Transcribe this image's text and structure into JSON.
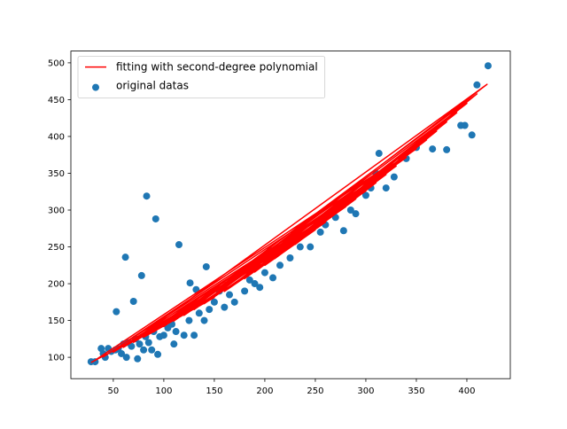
{
  "chart_data": {
    "type": "scatter",
    "legend": "upper left",
    "xlim": [
      8,
      443
    ],
    "ylim": [
      71,
      516
    ],
    "xticks": [
      50,
      100,
      150,
      200,
      250,
      300,
      350,
      400
    ],
    "yticks": [
      100,
      150,
      200,
      250,
      300,
      350,
      400,
      450,
      500
    ],
    "series": [
      {
        "name": "fitting with second-degree polynomial",
        "type": "line",
        "color": "#ff0000",
        "x": [
          28,
          150,
          80,
          300,
          120,
          420,
          60,
          250,
          200,
          410,
          100,
          350,
          40,
          320,
          180,
          390,
          140,
          280,
          90,
          370,
          230,
          310,
          50,
          260,
          160,
          400,
          110,
          340,
          70,
          290,
          210,
          380,
          130,
          330,
          190,
          360,
          30
        ],
        "values": [
          93.0,
          181.1,
          127.3,
          325.9,
          157.0,
          470.8,
          113.5,
          273.2,
          224.9,
          457.8,
          141.8,
          383.2,
          100.5,
          348.3,
          206.8,
          432.2,
          172.9,
          304.3,
          134.4,
          407.3,
          253.3,
          337.0,
          106.9,
          283.4,
          189.5,
          444.9,
          149.3,
          371.4,
          120.3,
          315.0,
          234.2,
          419.7,
          164.8,
          359.8,
          215.8,
          395.2,
          94.2
        ]
      },
      {
        "name": "original datas",
        "type": "scatter",
        "color": "#1f77b4",
        "x": [
          28,
          32,
          38,
          40,
          42,
          45,
          48,
          52,
          53,
          55,
          58,
          60,
          62,
          63,
          65,
          68,
          70,
          72,
          74,
          76,
          78,
          80,
          82,
          83,
          85,
          88,
          90,
          92,
          94,
          96,
          100,
          104,
          108,
          110,
          112,
          115,
          116,
          120,
          125,
          126,
          130,
          132,
          135,
          140,
          142,
          145,
          150,
          155,
          160,
          165,
          170,
          180,
          185,
          190,
          195,
          200,
          205,
          208,
          215,
          225,
          235,
          245,
          255,
          260,
          270,
          278,
          285,
          290,
          300,
          305,
          310,
          313,
          320,
          328,
          340,
          350,
          366,
          380,
          394,
          398,
          405,
          410,
          421
        ],
        "values": [
          94,
          94,
          112,
          105,
          100,
          112,
          108,
          110,
          162,
          112,
          105,
          118,
          236,
          100,
          120,
          115,
          176,
          125,
          98,
          118,
          211,
          110,
          128,
          319,
          120,
          110,
          135,
          288,
          104,
          128,
          130,
          140,
          145,
          118,
          135,
          253,
          160,
          130,
          150,
          201,
          130,
          192,
          160,
          150,
          223,
          165,
          175,
          190,
          168,
          185,
          175,
          190,
          205,
          200,
          195,
          215,
          245,
          208,
          225,
          235,
          250,
          250,
          270,
          280,
          290,
          272,
          300,
          295,
          320,
          330,
          350,
          377,
          330,
          345,
          370,
          385,
          383,
          382,
          415,
          415,
          402,
          470,
          496
        ]
      }
    ]
  }
}
